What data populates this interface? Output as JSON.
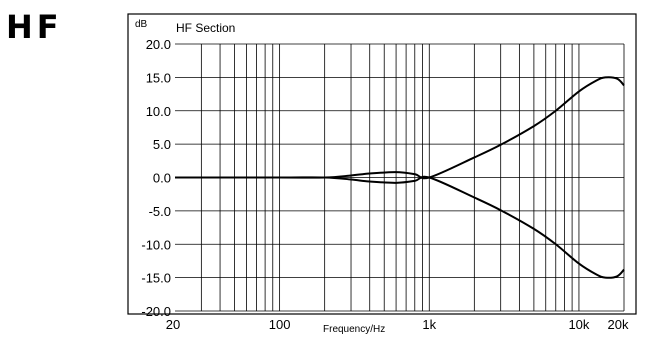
{
  "heading": "HF",
  "chart_data": {
    "type": "line",
    "title": "HF Section",
    "ylabel": "dB",
    "xlabel": "Frequency/Hz",
    "xscale": "log",
    "xlim": [
      20,
      20000
    ],
    "ylim": [
      -20,
      20
    ],
    "grid": true,
    "x_tick_labels": [
      {
        "value": 20,
        "label": "20"
      },
      {
        "value": 100,
        "label": "100"
      },
      {
        "value": 1000,
        "label": "1k"
      },
      {
        "value": 10000,
        "label": "10k"
      },
      {
        "value": 20000,
        "label": "20k"
      }
    ],
    "y_tick_labels": [
      {
        "value": 20,
        "label": "20.0"
      },
      {
        "value": 15,
        "label": "15.0"
      },
      {
        "value": 10,
        "label": "10.0"
      },
      {
        "value": 5,
        "label": "5.0"
      },
      {
        "value": 0,
        "label": "0.0"
      },
      {
        "value": -5,
        "label": "-5.0"
      },
      {
        "value": -10,
        "label": "-10.0"
      },
      {
        "value": -15,
        "label": "-15.0"
      },
      {
        "value": -20,
        "label": "-20.0"
      }
    ],
    "series": [
      {
        "x": [
          20,
          100,
          200,
          300,
          400,
          600,
          800,
          1000,
          2000,
          3000,
          5000,
          7000,
          10000,
          13000,
          15000,
          18000,
          20000
        ],
        "y": [
          0,
          0,
          0,
          0.3,
          0.6,
          0.8,
          0.5,
          0,
          3.0,
          4.9,
          7.7,
          10.0,
          12.9,
          14.5,
          15.0,
          14.8,
          13.8
        ]
      },
      {
        "x": [
          20,
          100,
          200,
          300,
          400,
          600,
          800,
          1000,
          2000,
          3000,
          5000,
          7000,
          10000,
          13000,
          15000,
          18000,
          20000
        ],
        "y": [
          0,
          0,
          0,
          -0.3,
          -0.6,
          -0.8,
          -0.5,
          0,
          -3.0,
          -4.9,
          -7.7,
          -10.0,
          -12.9,
          -14.5,
          -15.0,
          -14.8,
          -13.8
        ]
      }
    ]
  }
}
